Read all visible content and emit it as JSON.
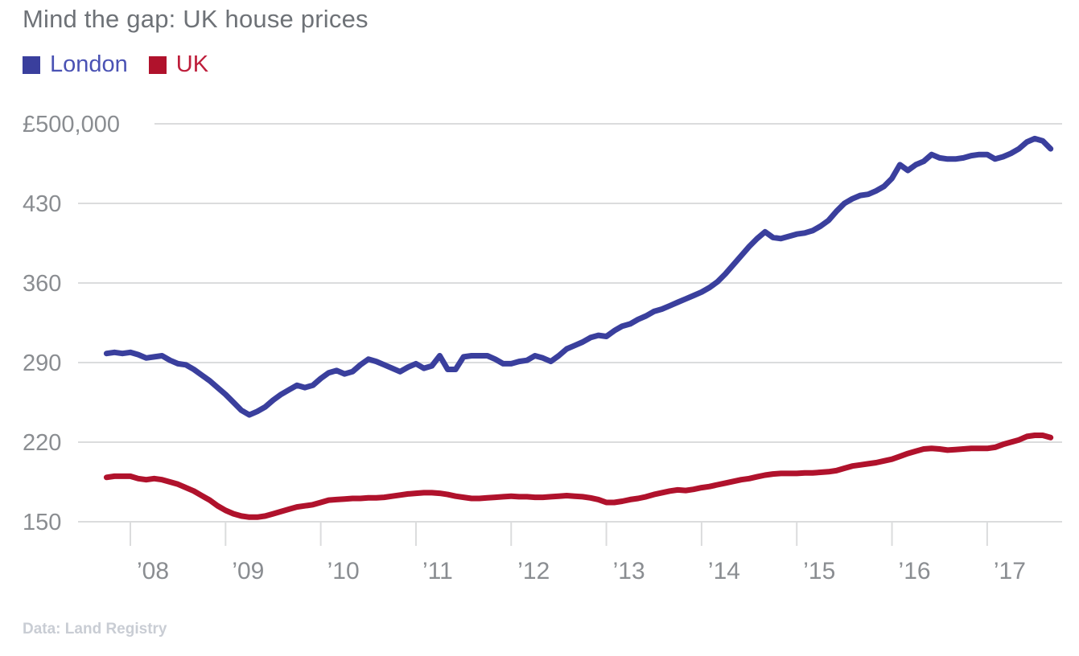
{
  "title": "Mind the gap: UK house prices",
  "footer": "Data: Land Registry",
  "legend": [
    {
      "label": "London",
      "color": "#3a3f9d",
      "text_color": "#4a52b4"
    },
    {
      "label": "UK",
      "color": "#b0122c",
      "text_color": "#be1e3b"
    }
  ],
  "colors": {
    "title_gray": "#6e7277",
    "axis_label_gray": "#8a8d91",
    "gridline_gray": "#dbdcdd",
    "source_gray": "#c9cdd4",
    "background": "#ffffff"
  },
  "chart_data": {
    "type": "line",
    "title": "Mind the gap: UK house prices",
    "unit": "GBP thousands",
    "x_start": "2007-10",
    "x_end": "2017-09",
    "x_interval": "monthly",
    "ylim": [
      150,
      500
    ],
    "grid": true,
    "legend_position": "top-left",
    "y_ticks": [
      {
        "value": 500,
        "label": "£500,000"
      },
      {
        "value": 430,
        "label": "430"
      },
      {
        "value": 360,
        "label": "360"
      },
      {
        "value": 290,
        "label": "290"
      },
      {
        "value": 220,
        "label": "220"
      },
      {
        "value": 150,
        "label": "150"
      }
    ],
    "x_ticks": [
      {
        "year": 2008,
        "label": "’08"
      },
      {
        "year": 2009,
        "label": "’09"
      },
      {
        "year": 2010,
        "label": "’10"
      },
      {
        "year": 2011,
        "label": "’11"
      },
      {
        "year": 2012,
        "label": "’12"
      },
      {
        "year": 2013,
        "label": "’13"
      },
      {
        "year": 2014,
        "label": "’14"
      },
      {
        "year": 2015,
        "label": "’15"
      },
      {
        "year": 2016,
        "label": "’16"
      },
      {
        "year": 2017,
        "label": "’17"
      }
    ],
    "series": [
      {
        "name": "London",
        "color": "#3a3f9d",
        "values": [
          298,
          299,
          298,
          299,
          297,
          294,
          295,
          296,
          292,
          289,
          288,
          284,
          279,
          274,
          268,
          262,
          255,
          248,
          244,
          247,
          251,
          257,
          262,
          266,
          270,
          268,
          270,
          276,
          281,
          283,
          280,
          282,
          288,
          293,
          291,
          288,
          285,
          282,
          286,
          289,
          285,
          287,
          296,
          284,
          284,
          295,
          296,
          296,
          296,
          293,
          289,
          289,
          291,
          292,
          296,
          294,
          291,
          296,
          302,
          305,
          308,
          312,
          314,
          313,
          318,
          322,
          324,
          328,
          331,
          335,
          337,
          340,
          343,
          346,
          349,
          352,
          356,
          361,
          368,
          376,
          384,
          392,
          399,
          405,
          400,
          399,
          401,
          403,
          404,
          406,
          410,
          415,
          423,
          430,
          434,
          437,
          438,
          441,
          445,
          452,
          464,
          459,
          464,
          467,
          473,
          470,
          469,
          469,
          470,
          472,
          473,
          473,
          469,
          471,
          474,
          478,
          484,
          487,
          485,
          478
        ]
      },
      {
        "name": "UK",
        "color": "#b0122c",
        "values": [
          189,
          190,
          190,
          190,
          188,
          187,
          188,
          187,
          185,
          183,
          180,
          177,
          173,
          169,
          164,
          160,
          157,
          155,
          154,
          154,
          155,
          157,
          159,
          161,
          163,
          164,
          165,
          167,
          169,
          169.5,
          170,
          170.5,
          170.5,
          171,
          171,
          171.5,
          172.5,
          173.5,
          174.5,
          175,
          175.5,
          175.5,
          175,
          174,
          172.5,
          171.5,
          170.5,
          170.5,
          171,
          171.5,
          172,
          172.5,
          172,
          172,
          171.5,
          171.5,
          172,
          172.5,
          173,
          172.5,
          172,
          171,
          169.5,
          167,
          167,
          168,
          169.5,
          170.5,
          172,
          174,
          175.5,
          177,
          178,
          177.5,
          178.5,
          180,
          181,
          182.5,
          184,
          185.5,
          187,
          188,
          189.5,
          191,
          192,
          192.5,
          192.5,
          192.5,
          193,
          193,
          193.5,
          194,
          195,
          197,
          199,
          200,
          201,
          202,
          203.5,
          205,
          207.5,
          210,
          212,
          214,
          214.5,
          214,
          213,
          213.5,
          214,
          214.5,
          214.5,
          214.5,
          215.5,
          218,
          220,
          222,
          225,
          226,
          226,
          224
        ]
      }
    ]
  }
}
